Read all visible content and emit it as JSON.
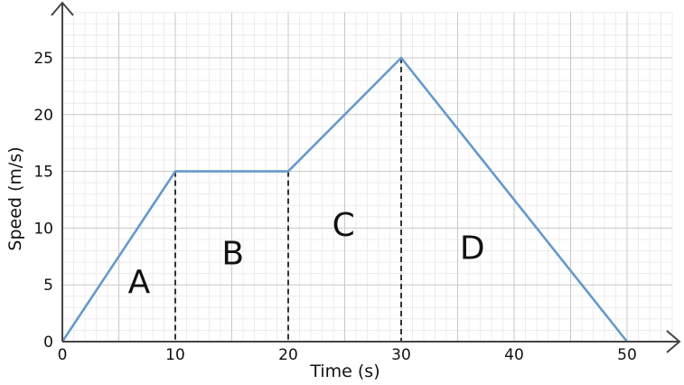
{
  "chart_data": {
    "type": "line",
    "title": "",
    "xlabel": "Time (s)",
    "ylabel": "Speed (m/s)",
    "xlim": [
      0,
      54
    ],
    "ylim": [
      0,
      29
    ],
    "x_ticks": [
      0,
      10,
      20,
      30,
      40,
      50
    ],
    "y_ticks": [
      0,
      5,
      10,
      15,
      20,
      25
    ],
    "x_tick_labels": [
      "0",
      "10",
      "20",
      "30",
      "40",
      "50"
    ],
    "y_tick_labels": [
      "0",
      "5",
      "10",
      "15",
      "20",
      "25"
    ],
    "grid": true,
    "legend": "none",
    "series": [
      {
        "x": [
          0,
          10,
          20,
          30,
          50
        ],
        "y": [
          0,
          15,
          15,
          25,
          0
        ],
        "color": "#6699cc"
      }
    ],
    "dashed_drop_lines": [
      {
        "x": 10,
        "y": 15
      },
      {
        "x": 20,
        "y": 15
      },
      {
        "x": 30,
        "y": 25
      }
    ],
    "region_labels": [
      {
        "text": "A",
        "x": 6.8,
        "y": 4.3
      },
      {
        "text": "B",
        "x": 15.1,
        "y": 6.8
      },
      {
        "text": "C",
        "x": 24.9,
        "y": 9.3
      },
      {
        "text": "D",
        "x": 36.3,
        "y": 7.3
      }
    ]
  }
}
